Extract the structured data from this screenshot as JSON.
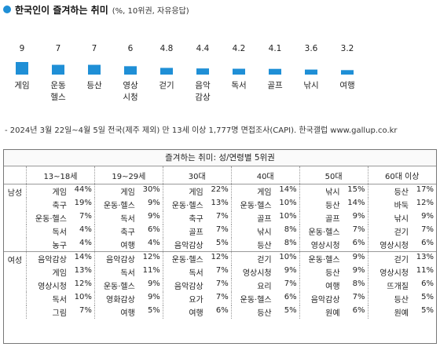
{
  "header": {
    "title": "한국인이 즐겨하는 취미",
    "unit": "(%, 10위권, 자유응답)"
  },
  "chart_data": {
    "type": "bar",
    "title": "한국인이 즐겨하는 취미",
    "categories": [
      "게임",
      "운동\n헬스",
      "등산",
      "영상\n시청",
      "걷기",
      "음악\n감상",
      "독서",
      "골프",
      "낚시",
      "여행"
    ],
    "values": [
      9,
      7,
      7,
      6,
      4.8,
      4.4,
      4.2,
      4.1,
      3.6,
      3.2
    ],
    "value_labels": [
      "9",
      "7",
      "7",
      "6",
      "4.8",
      "4.4",
      "4.2",
      "4.1",
      "3.6",
      "3.2"
    ],
    "ylim": [
      0,
      9
    ],
    "bar_color": "#1f8fd6"
  },
  "note": "- 2024년 3월 22일~4월 5일 전국(제주 제외) 만 13세 이상 1,777명 면접조사(CAPI). 한국갤럽 www.gallup.co.kr",
  "table": {
    "title": "즐겨하는 취미: 성/연령별 5위권",
    "columns": [
      "13~18세",
      "19~29세",
      "30대",
      "40대",
      "50대",
      "60대 이상"
    ],
    "groups": [
      {
        "label": "남성",
        "rows": [
          [
            [
              "게임",
              "44%"
            ],
            [
              "게임",
              "30%"
            ],
            [
              "게임",
              "22%"
            ],
            [
              "게임",
              "14%"
            ],
            [
              "낚시",
              "15%"
            ],
            [
              "등산",
              "17%"
            ]
          ],
          [
            [
              "축구",
              "19%"
            ],
            [
              "운동·헬스",
              "9%"
            ],
            [
              "운동·헬스",
              "13%"
            ],
            [
              "운동·헬스",
              "10%"
            ],
            [
              "등산",
              "14%"
            ],
            [
              "바둑",
              "12%"
            ]
          ],
          [
            [
              "운동·헬스",
              "7%"
            ],
            [
              "독서",
              "9%"
            ],
            [
              "축구",
              "7%"
            ],
            [
              "골프",
              "10%"
            ],
            [
              "골프",
              "9%"
            ],
            [
              "낚시",
              "9%"
            ]
          ],
          [
            [
              "독서",
              "4%"
            ],
            [
              "축구",
              "6%"
            ],
            [
              "골프",
              "7%"
            ],
            [
              "낚시",
              "8%"
            ],
            [
              "운동·헬스",
              "7%"
            ],
            [
              "걷기",
              "7%"
            ]
          ],
          [
            [
              "농구",
              "4%"
            ],
            [
              "여행",
              "4%"
            ],
            [
              "음악감상",
              "5%"
            ],
            [
              "등산",
              "8%"
            ],
            [
              "영상시청",
              "6%"
            ],
            [
              "영상시청",
              "6%"
            ]
          ]
        ]
      },
      {
        "label": "여성",
        "rows": [
          [
            [
              "음악감상",
              "14%"
            ],
            [
              "음악감상",
              "12%"
            ],
            [
              "운동·헬스",
              "12%"
            ],
            [
              "걷기",
              "10%"
            ],
            [
              "운동·헬스",
              "9%"
            ],
            [
              "걷기",
              "13%"
            ]
          ],
          [
            [
              "게임",
              "13%"
            ],
            [
              "독서",
              "11%"
            ],
            [
              "독서",
              "7%"
            ],
            [
              "영상시청",
              "9%"
            ],
            [
              "등산",
              "9%"
            ],
            [
              "영상시청",
              "11%"
            ]
          ],
          [
            [
              "영상시청",
              "12%"
            ],
            [
              "운동·헬스",
              "9%"
            ],
            [
              "음악감상",
              "7%"
            ],
            [
              "요리",
              "7%"
            ],
            [
              "여행",
              "8%"
            ],
            [
              "뜨개질",
              "6%"
            ]
          ],
          [
            [
              "독서",
              "10%"
            ],
            [
              "영화감상",
              "9%"
            ],
            [
              "요가",
              "7%"
            ],
            [
              "운동·헬스",
              "6%"
            ],
            [
              "음악감상",
              "7%"
            ],
            [
              "등산",
              "5%"
            ]
          ],
          [
            [
              "그림",
              "7%"
            ],
            [
              "여행",
              "5%"
            ],
            [
              "여행",
              "6%"
            ],
            [
              "등산",
              "5%"
            ],
            [
              "원예",
              "6%"
            ],
            [
              "원예",
              "5%"
            ]
          ]
        ]
      }
    ]
  }
}
